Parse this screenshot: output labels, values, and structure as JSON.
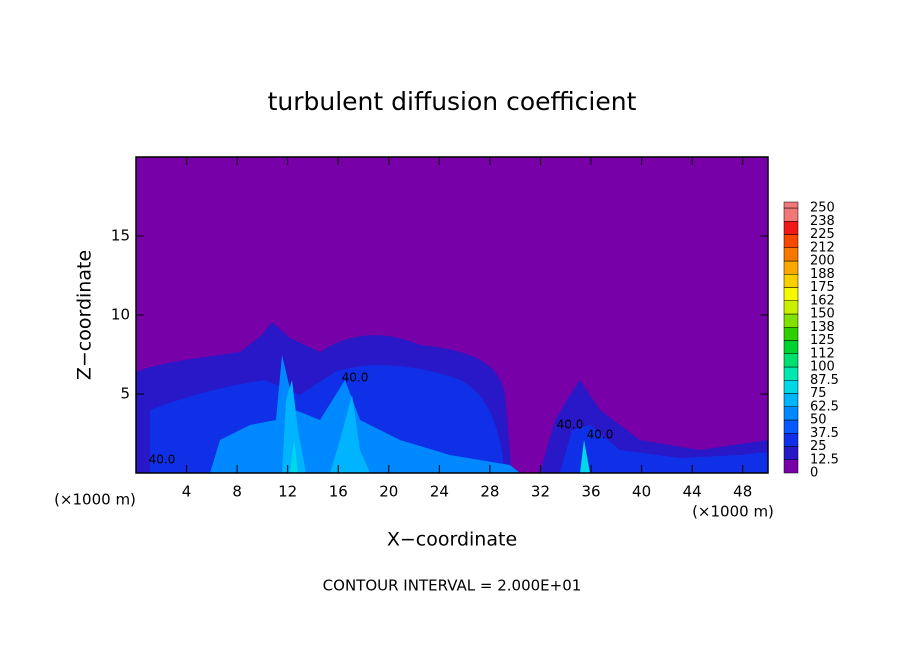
{
  "chart_data": {
    "type": "contour",
    "title": "turbulent diffusion coefficient",
    "x_label": "X−coordinate",
    "y_label": "Z−coordinate",
    "x_unit_left": "(×1000 m)",
    "x_unit_right": "(×1000 m)",
    "footnote": "CONTOUR INTERVAL = 2.000E+01",
    "xlim": [
      0,
      50
    ],
    "xticks": [
      4,
      8,
      12,
      16,
      20,
      24,
      28,
      32,
      36,
      40,
      44,
      48
    ],
    "ylim": [
      0,
      20
    ],
    "yticks": [
      5,
      10,
      15
    ],
    "contour_labels": [
      "40.0",
      "40.0",
      "40.0",
      "40.0"
    ],
    "colorbar": {
      "lim": [
        0,
        250
      ],
      "ticks": [
        0,
        12.5,
        25,
        37.5,
        50,
        62.5,
        75,
        87.5,
        100,
        {
          "value": 112.5,
          "label": "112"
        },
        125,
        {
          "value": 137.5,
          "label": "138"
        },
        150,
        {
          "value": 162.5,
          "label": "162"
        },
        175,
        {
          "value": 187.5,
          "label": "188"
        },
        200,
        {
          "value": 212.5,
          "label": "212"
        },
        225,
        {
          "value": 237.5,
          "label": "238"
        },
        250
      ],
      "colors": [
        "#7800a8",
        "#2818c8",
        "#1030e8",
        "#0858ff",
        "#0088ff",
        "#00b4ff",
        "#00d8e8",
        "#00e8b0",
        "#00e070",
        "#00d030",
        "#30d000",
        "#80e000",
        "#c8f000",
        "#f8f800",
        "#f8d000",
        "#f8a800",
        "#f87800",
        "#f84800",
        "#f01818",
        "#f07878"
      ]
    }
  }
}
